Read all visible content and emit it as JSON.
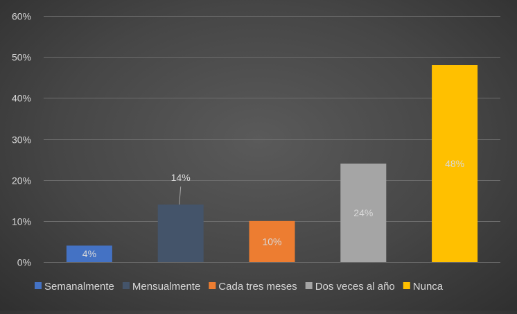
{
  "chart_data": {
    "type": "bar",
    "title": "",
    "xlabel": "",
    "ylabel": "",
    "categories": [
      "Semanalmente",
      "Mensualmente",
      "Cada tres meses",
      "Dos veces al año",
      "Nunca"
    ],
    "values": [
      4,
      14,
      10,
      24,
      48
    ],
    "value_labels": [
      "4%",
      "14%",
      "10%",
      "24%",
      "48%"
    ],
    "ylim": [
      0,
      60
    ],
    "yticks": [
      0,
      10,
      20,
      30,
      40,
      50,
      60
    ],
    "ytick_labels": [
      "0%",
      "10%",
      "20%",
      "30%",
      "40%",
      "50%",
      "60%"
    ],
    "colors": [
      "#4472c4",
      "#44546a",
      "#ed7d31",
      "#a5a5a5",
      "#ffc000"
    ],
    "label_color": "#d9d9d9",
    "grid": true,
    "legend_position": "bottom",
    "legend": [
      "Semanalmente",
      "Mensualmente",
      "Cada tres meses",
      "Dos veces al año",
      "Nunca"
    ]
  }
}
